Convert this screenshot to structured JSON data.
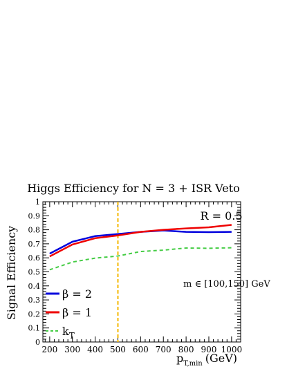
{
  "chart_data": {
    "type": "line",
    "title": "Higgs Efficiency for N = 3 + ISR Veto",
    "xlabel": "p",
    "xlabel_sub": "T,min",
    "xlabel_unit": "(GeV)",
    "ylabel": "Signal Efficiency",
    "xlim": [
      170,
      1040
    ],
    "ylim": [
      0,
      1
    ],
    "grid": false,
    "legend_position": "bottom-left",
    "x_ticks": [
      200,
      300,
      400,
      500,
      600,
      700,
      800,
      900,
      1000
    ],
    "y_ticks": [
      0,
      0.1,
      0.2,
      0.3,
      0.4,
      0.5,
      0.6,
      0.7,
      0.8,
      0.9,
      1
    ],
    "x_tick_labels": [
      "200",
      "300",
      "400",
      "500",
      "600",
      "700",
      "800",
      "900",
      "1000"
    ],
    "y_tick_labels": [
      "0",
      "0.1",
      "0.2",
      "0.3",
      "0.4",
      "0.5",
      "0.6",
      "0.7",
      "0.8",
      "0.9",
      "1"
    ],
    "annotations": {
      "radius": "R = 0.5",
      "mass_window": "m ∈ [100,150] GeV"
    },
    "vertical_line": {
      "x": 500,
      "color": "#f5b800"
    },
    "series": [
      {
        "name": "β = 2",
        "color": "#0000dd",
        "style": "solid",
        "x": [
          200,
          300,
          400,
          500,
          600,
          700,
          800,
          900,
          1000
        ],
        "values": [
          0.63,
          0.715,
          0.755,
          0.77,
          0.785,
          0.795,
          0.785,
          0.783,
          0.785
        ]
      },
      {
        "name": "β = 1",
        "color": "#ee0000",
        "style": "solid",
        "x": [
          200,
          300,
          400,
          500,
          600,
          700,
          800,
          900,
          1000
        ],
        "values": [
          0.61,
          0.695,
          0.74,
          0.76,
          0.785,
          0.8,
          0.81,
          0.818,
          0.835
        ]
      },
      {
        "name": "k",
        "name_sub": "T",
        "color": "#44cc44",
        "style": "dashed",
        "x": [
          200,
          300,
          400,
          500,
          600,
          700,
          800,
          900,
          1000
        ],
        "values": [
          0.515,
          0.57,
          0.598,
          0.613,
          0.645,
          0.655,
          0.67,
          0.668,
          0.672
        ]
      }
    ]
  }
}
